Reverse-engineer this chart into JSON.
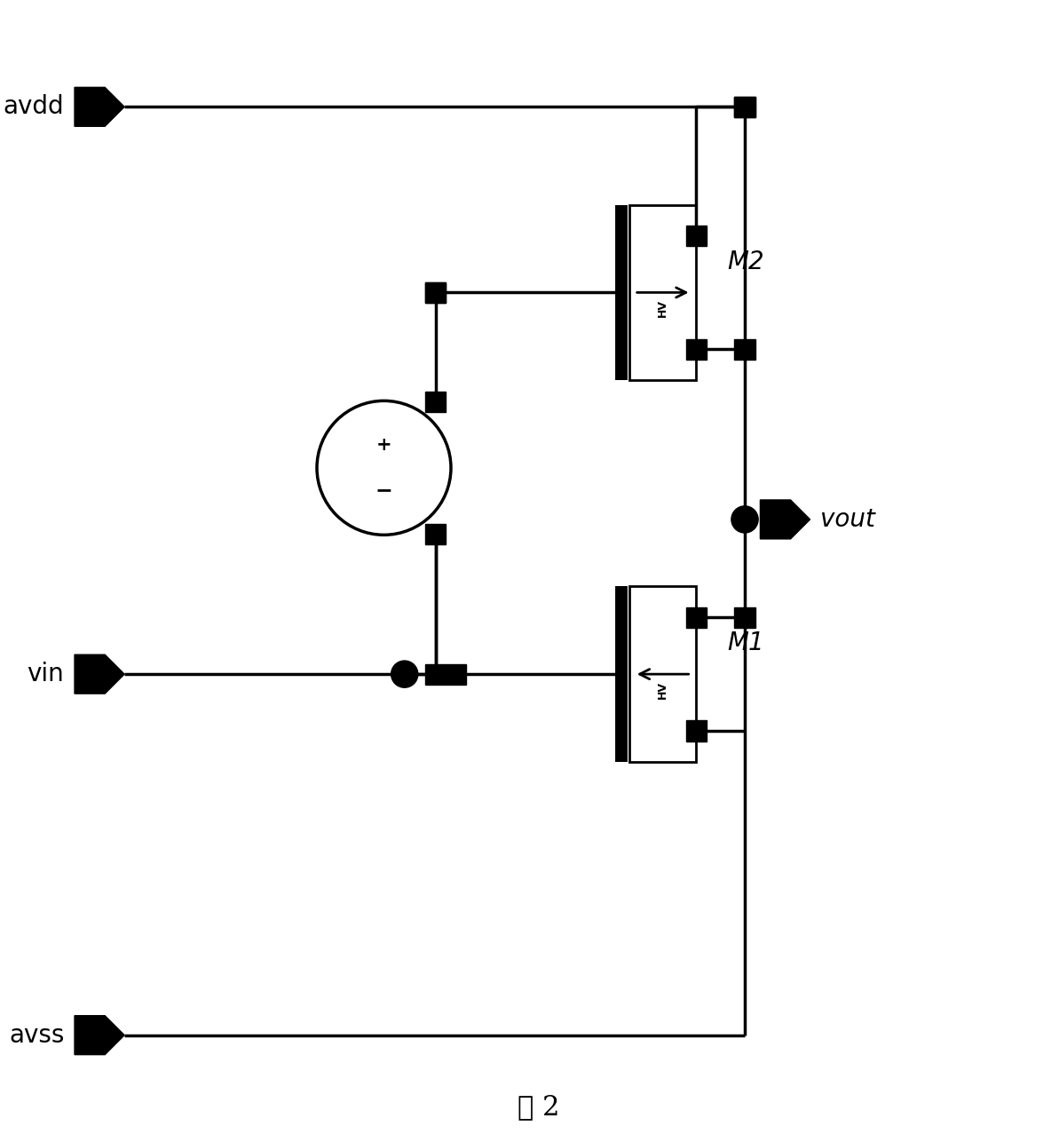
{
  "bg_color": "#ffffff",
  "line_color": "#000000",
  "fig_width": 11.93,
  "fig_height": 12.86,
  "title": "图 2",
  "labels": {
    "avdd": "avdd",
    "vin": "vin",
    "avss": "avss",
    "vout": "vout",
    "M1": "M1",
    "M2": "M2"
  },
  "lw": 2.5,
  "sq_size": 0.2,
  "dot_r": 0.13,
  "arr_size": 0.42,
  "op_r": 0.65
}
